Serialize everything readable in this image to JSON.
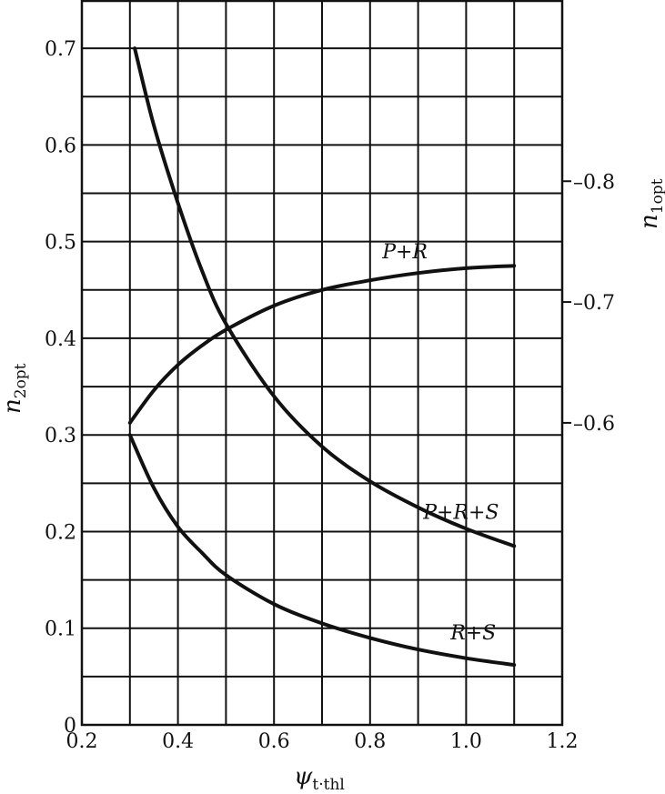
{
  "chart_data": {
    "type": "line",
    "xlabel": "ψ",
    "xlabel_subscript": "t·thl",
    "ylabel": "n",
    "ylabel_subscript": "2opt",
    "y2label": "n",
    "y2label_subscript": "1opt",
    "xlim": [
      0.2,
      1.2
    ],
    "ylim": [
      0,
      0.75
    ],
    "y2lim": [
      0.35,
      0.95
    ],
    "grid": true,
    "x_ticks": [
      "0.2",
      "0.4",
      "0.6",
      "0.8",
      "1.0",
      "1.2"
    ],
    "y_ticks": [
      "0",
      "0.1",
      "0.2",
      "0.3",
      "0.4",
      "0.5",
      "0.6",
      "0.7"
    ],
    "y2_ticks": [
      "0.6",
      "0.7",
      "0.8"
    ],
    "series": [
      {
        "name": "P+R",
        "axis": "right",
        "x": [
          0.3,
          0.35,
          0.4,
          0.45,
          0.5,
          0.6,
          0.7,
          0.8,
          0.9,
          1.0,
          1.1
        ],
        "y": [
          0.6,
          0.627,
          0.648,
          0.664,
          0.677,
          0.697,
          0.71,
          0.718,
          0.724,
          0.728,
          0.73
        ]
      },
      {
        "name": "P+R+S",
        "axis": "left",
        "x": [
          0.31,
          0.35,
          0.4,
          0.45,
          0.5,
          0.6,
          0.7,
          0.8,
          0.9,
          1.0,
          1.1
        ],
        "y": [
          0.7,
          0.62,
          0.54,
          0.47,
          0.415,
          0.34,
          0.288,
          0.252,
          0.225,
          0.203,
          0.185
        ]
      },
      {
        "name": "R+S",
        "axis": "left",
        "x": [
          0.3,
          0.35,
          0.4,
          0.45,
          0.5,
          0.6,
          0.7,
          0.8,
          0.9,
          1.0,
          1.1
        ],
        "y": [
          0.3,
          0.245,
          0.205,
          0.178,
          0.155,
          0.125,
          0.105,
          0.09,
          0.078,
          0.069,
          0.062
        ]
      }
    ]
  }
}
